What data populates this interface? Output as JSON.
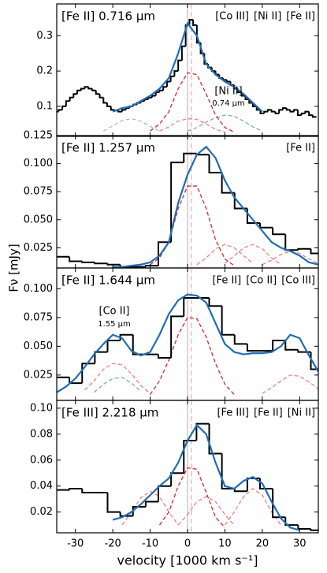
{
  "chart_data": [
    {
      "type": "line",
      "title": "[Fe II] 0.716 μm",
      "legend_labels": [
        {
          "text": "[Co III]",
          "color": "#f08080"
        },
        {
          "text": "[Ni II]",
          "color": "#7aa6d6"
        },
        {
          "text": "[Fe II]",
          "color": "#b8b8b8"
        }
      ],
      "annotations": [
        {
          "text": "[Ni II]",
          "detail": "0.74 μm",
          "color": "#7aa6d6"
        }
      ],
      "xlim": [
        -35,
        35
      ],
      "ylim": [
        0.015,
        0.39
      ],
      "yticks": [
        0.1,
        0.2,
        0.3
      ],
      "vlines": [
        {
          "x": 0,
          "color": "#cccccc"
        },
        {
          "x": 1,
          "color": "#f6b8c6",
          "dash": true
        }
      ],
      "series": [
        {
          "color": "#b8b8b8",
          "dash": true,
          "x": [
            -22.5,
            -20,
            -17.5,
            -15,
            -12.5,
            -10,
            -7.5
          ],
          "values": [
            0.03,
            0.045,
            0.06,
            0.065,
            0.058,
            0.043,
            0.03
          ]
        },
        {
          "color": "#f08080",
          "dash": true,
          "x": [
            -7.5,
            -5,
            -2.5,
            0,
            2.5,
            5,
            7.5,
            10
          ],
          "values": [
            0.03,
            0.042,
            0.058,
            0.065,
            0.063,
            0.05,
            0.035,
            0.027
          ]
        },
        {
          "color": "#7aa6d6",
          "dash": true,
          "x": [
            0,
            2.5,
            5,
            7.5,
            10,
            12.5,
            15,
            17.5,
            20
          ],
          "values": [
            0.03,
            0.04,
            0.055,
            0.068,
            0.075,
            0.072,
            0.058,
            0.042,
            0.03
          ]
        },
        {
          "color": "#d62728",
          "dash": true,
          "x": [
            -10,
            -7.5,
            -5,
            -2.5,
            0,
            2.5,
            5,
            7.5,
            10,
            12.5
          ],
          "values": [
            0.03,
            0.05,
            0.085,
            0.15,
            0.195,
            0.19,
            0.135,
            0.075,
            0.04,
            0.027
          ]
        },
        {
          "color": "#000000",
          "step": true,
          "x": [
            -35,
            -34,
            -33,
            -32,
            -31,
            -30,
            -29,
            -28,
            -27,
            -26,
            -25,
            -24,
            -23,
            -22,
            -21,
            -20,
            -19,
            -18,
            -17,
            -16,
            -15,
            -14,
            -13,
            -12,
            -11,
            -10,
            -9,
            -8,
            -7,
            -6,
            -5,
            -4,
            -3,
            -2,
            -1,
            0,
            1,
            2,
            3,
            4,
            5,
            6,
            7,
            8,
            9,
            10,
            11,
            12,
            13,
            14,
            15,
            16,
            17,
            18,
            19,
            20,
            21,
            22,
            23,
            24,
            25,
            26,
            27,
            28,
            29,
            30,
            31,
            32,
            33,
            34
          ],
          "values": [
            0.085,
            0.09,
            0.1,
            0.115,
            0.125,
            0.135,
            0.145,
            0.15,
            0.155,
            0.15,
            0.145,
            0.135,
            0.125,
            0.11,
            0.1,
            0.09,
            0.088,
            0.085,
            0.09,
            0.095,
            0.1,
            0.105,
            0.11,
            0.115,
            0.12,
            0.125,
            0.13,
            0.14,
            0.145,
            0.155,
            0.17,
            0.185,
            0.2,
            0.23,
            0.27,
            0.33,
            0.345,
            0.33,
            0.28,
            0.25,
            0.22,
            0.21,
            0.2,
            0.19,
            0.18,
            0.175,
            0.17,
            0.16,
            0.15,
            0.14,
            0.13,
            0.12,
            0.11,
            0.1,
            0.09,
            0.08,
            0.085,
            0.09,
            0.085,
            0.08,
            0.09,
            0.095,
            0.09,
            0.085,
            0.09,
            0.075,
            0.08,
            0.085,
            0.075,
            0.07
          ]
        },
        {
          "color": "#1f6db5",
          "x": [
            -20,
            -17.5,
            -15,
            -12.5,
            -10,
            -7.5,
            -5,
            -2.5,
            0,
            2.5,
            5,
            7.5,
            10,
            12.5,
            15,
            17.5,
            20
          ],
          "values": [
            0.085,
            0.095,
            0.1,
            0.115,
            0.13,
            0.15,
            0.18,
            0.25,
            0.335,
            0.3,
            0.22,
            0.19,
            0.17,
            0.155,
            0.135,
            0.11,
            0.085
          ]
        }
      ]
    },
    {
      "type": "line",
      "title": "[Fe II] 1.257 μm",
      "y_label": "Fν [mJy]",
      "legend_labels": [
        {
          "text": "[Fe II]",
          "color": "#f08080"
        }
      ],
      "xlim": [
        -35,
        35
      ],
      "ylim": [
        0.007,
        0.125
      ],
      "yticks": [
        0.025,
        {
          "value": 0.05,
          "label": "0.050"
        },
        0.075,
        {
          "value": 0.1,
          "label": "0.100"
        },
        0.125
      ],
      "vlines": [
        {
          "x": 0,
          "color": "#cccccc"
        },
        {
          "x": 1,
          "color": "#f6b8c6",
          "dash": true
        }
      ],
      "series": [
        {
          "color": "#f08080",
          "dash": true,
          "x": [
            2.5,
            5,
            7.5,
            10,
            12.5,
            15,
            17.5
          ],
          "values": [
            0.01,
            0.016,
            0.024,
            0.028,
            0.025,
            0.018,
            0.011
          ]
        },
        {
          "color": "#f08080",
          "dash": true,
          "x": [
            10,
            12.5,
            15,
            17.5,
            20,
            22.5,
            25
          ],
          "values": [
            0.011,
            0.018,
            0.025,
            0.028,
            0.024,
            0.016,
            0.01
          ]
        },
        {
          "color": "#f08080",
          "dash": true,
          "x": [
            20,
            22.5,
            25,
            27.5,
            30,
            32.5,
            35
          ],
          "values": [
            0.01,
            0.014,
            0.019,
            0.022,
            0.02,
            0.015,
            0.011
          ]
        },
        {
          "color": "#d62728",
          "dash": true,
          "x": [
            -10,
            -7.5,
            -5,
            -2.5,
            0,
            2.5,
            5,
            7.5,
            10,
            12.5
          ],
          "values": [
            0.01,
            0.016,
            0.03,
            0.06,
            0.08,
            0.08,
            0.06,
            0.032,
            0.015,
            0.009
          ]
        },
        {
          "color": "#000000",
          "step": true,
          "x": [
            -33.3,
            -29.9,
            -26.5,
            -23.1,
            -19.7,
            -16.3,
            -12.9,
            -9.5,
            -6.1,
            -2.7,
            0.7,
            4.1,
            7.5,
            10.9,
            14.3,
            17.7,
            21.1,
            24.5,
            27.9,
            31.3,
            34.7
          ],
          "values": [
            0.017,
            0.013,
            0.012,
            0.011,
            0.01,
            0.008,
            0.008,
            0.009,
            0.03,
            0.101,
            0.109,
            0.108,
            0.092,
            0.074,
            0.06,
            0.047,
            0.043,
            0.037,
            0.023,
            0.024,
            0.02
          ]
        },
        {
          "color": "#1f6db5",
          "x": [
            -20,
            -17.5,
            -15,
            -12.5,
            -10,
            -7.5,
            -5,
            -2.5,
            0,
            2.5,
            5,
            7.5,
            10,
            12.5,
            15,
            17.5,
            20,
            22.5,
            25,
            27.5,
            30,
            32.5,
            35
          ],
          "values": [
            0.008,
            0.008,
            0.009,
            0.01,
            0.012,
            0.018,
            0.03,
            0.065,
            0.09,
            0.108,
            0.115,
            0.105,
            0.085,
            0.07,
            0.06,
            0.05,
            0.04,
            0.03,
            0.025,
            0.022,
            0.018,
            0.012,
            0.01
          ]
        }
      ]
    },
    {
      "type": "line",
      "title": "[Fe II] 1.644 μm",
      "legend_labels": [
        {
          "text": "[Fe II]",
          "color": "#f08080"
        },
        {
          "text": "[Co II]",
          "color": "#7aa6d6"
        },
        {
          "text": "[Co III]",
          "color": "#b8b8b8"
        }
      ],
      "annotations": [
        {
          "text": "[Co II]",
          "detail": "1.55 μm",
          "color": "#7aa6d6"
        }
      ],
      "xlim": [
        -35,
        35
      ],
      "ylim": [
        0.003,
        0.118
      ],
      "yticks": [
        0.025,
        {
          "value": 0.05,
          "label": "0.050"
        },
        0.075,
        {
          "value": 0.1,
          "label": "0.100"
        }
      ],
      "vlines": [
        {
          "x": 0,
          "color": "#cccccc"
        },
        {
          "x": 1,
          "color": "#f6b8c6",
          "dash": true
        }
      ],
      "series": [
        {
          "color": "#7aa6d6",
          "dash": true,
          "x": [
            -25,
            -22.5,
            -20,
            -17.5,
            -15,
            -12.5
          ],
          "values": [
            0.01,
            0.017,
            0.022,
            0.023,
            0.018,
            0.011
          ]
        },
        {
          "color": "#f08080",
          "dash": true,
          "x": [
            -27.5,
            -25,
            -22.5,
            -20,
            -17.5,
            -15,
            -12.5,
            -10
          ],
          "values": [
            0.012,
            0.02,
            0.03,
            0.035,
            0.034,
            0.026,
            0.016,
            0.009
          ]
        },
        {
          "color": "#f08080",
          "dash": true,
          "x": [
            20,
            22.5,
            25,
            27.5,
            30,
            32.5,
            35
          ],
          "values": [
            0.009,
            0.014,
            0.02,
            0.025,
            0.024,
            0.019,
            0.013
          ]
        },
        {
          "color": "#d62728",
          "dash": true,
          "x": [
            -10,
            -7.5,
            -5,
            -2.5,
            0,
            2.5,
            5,
            7.5,
            10,
            12.5
          ],
          "values": [
            0.008,
            0.02,
            0.038,
            0.06,
            0.075,
            0.074,
            0.058,
            0.035,
            0.017,
            0.008
          ]
        },
        {
          "color": "#000000",
          "step": true,
          "x": [
            -33.3,
            -29.9,
            -26.5,
            -23.1,
            -19.7,
            -16.3,
            -12.9,
            -9.5,
            -6.1,
            -2.7,
            0.7,
            4.1,
            7.5,
            10.9,
            14.3,
            17.7,
            21.1,
            24.5,
            27.9,
            31.3,
            34.7
          ],
          "values": [
            0.023,
            0.018,
            0.035,
            0.045,
            0.055,
            0.06,
            0.043,
            0.043,
            0.04,
            0.076,
            0.092,
            0.092,
            0.085,
            0.06,
            0.052,
            0.046,
            0.046,
            0.055,
            0.047,
            0.045,
            0.03
          ]
        },
        {
          "color": "#1f6db5",
          "x": [
            -35,
            -32.5,
            -30,
            -27.5,
            -25,
            -22.5,
            -20,
            -17.5,
            -15,
            -12.5,
            -10,
            -7.5,
            -5,
            -2.5,
            0,
            2.5,
            5,
            7.5,
            10,
            12.5,
            15,
            17.5,
            20,
            22.5,
            25,
            27.5,
            30,
            32.5,
            35
          ],
          "values": [
            0.01,
            0.015,
            0.022,
            0.032,
            0.043,
            0.052,
            0.06,
            0.057,
            0.046,
            0.042,
            0.045,
            0.06,
            0.078,
            0.09,
            0.095,
            0.094,
            0.088,
            0.07,
            0.052,
            0.045,
            0.043,
            0.044,
            0.044,
            0.045,
            0.05,
            0.06,
            0.057,
            0.042,
            0.028
          ]
        }
      ]
    },
    {
      "type": "line",
      "title": "[Fe III] 2.218 μm",
      "x_label": "velocity [1000 km s⁻¹]",
      "legend_labels": [
        {
          "text": "[Fe III]",
          "color": "#f08080"
        },
        {
          "text": "[Fe II]",
          "color": "#7aa6d6"
        },
        {
          "text": "[Ni II]",
          "color": "#b8b8b8"
        }
      ],
      "xlim": [
        -35,
        35
      ],
      "ylim": [
        0.004,
        0.106
      ],
      "xticks": [
        -30,
        -20,
        -10,
        0,
        10,
        20,
        30
      ],
      "yticks": [
        0.02,
        0.04,
        0.06,
        0.08,
        {
          "value": 0.1,
          "label": "0.10"
        }
      ],
      "vlines": [
        {
          "x": 0,
          "color": "#cccccc"
        },
        {
          "x": 1,
          "color": "#f6b8c6",
          "dash": true
        }
      ],
      "series": [
        {
          "color": "#f08080",
          "dash": true,
          "x": [
            -17.5,
            -15,
            -12.5,
            -10,
            -7.5,
            -5,
            -2.5
          ],
          "values": [
            0.01,
            0.02,
            0.031,
            0.036,
            0.032,
            0.02,
            0.01
          ]
        },
        {
          "color": "#f08080",
          "dash": true,
          "x": [
            -2.5,
            0,
            2.5,
            5,
            7.5,
            10,
            12.5
          ],
          "values": [
            0.01,
            0.018,
            0.028,
            0.032,
            0.028,
            0.018,
            0.01
          ]
        },
        {
          "color": "#f08080",
          "dash": true,
          "x": [
            10,
            12.5,
            15,
            17.5,
            20,
            22.5,
            25
          ],
          "values": [
            0.01,
            0.02,
            0.032,
            0.038,
            0.033,
            0.02,
            0.01
          ]
        },
        {
          "color": "#d62728",
          "dash": true,
          "x": [
            -7.5,
            -5,
            -2.5,
            0,
            2.5,
            5,
            7.5,
            10
          ],
          "values": [
            0.01,
            0.02,
            0.04,
            0.054,
            0.053,
            0.035,
            0.016,
            0.008
          ]
        },
        {
          "color": "#000000",
          "step": true,
          "x": [
            -33.3,
            -29.9,
            -26.5,
            -23.1,
            -19.7,
            -16.3,
            -12.9,
            -9.5,
            -6.1,
            -2.7,
            0.7,
            4.1,
            7.5,
            10.9,
            14.3,
            17.7,
            21.1,
            24.5,
            27.9,
            31.3,
            34.7
          ],
          "values": [
            0.037,
            0.038,
            0.035,
            0.035,
            0.02,
            0.017,
            0.024,
            0.028,
            0.04,
            0.05,
            0.075,
            0.088,
            0.065,
            0.038,
            0.036,
            0.046,
            0.038,
            0.016,
            0.01,
            0.007,
            0.006
          ]
        },
        {
          "color": "#1f6db5",
          "x": [
            -20,
            -17.5,
            -15,
            -12.5,
            -10,
            -7.5,
            -5,
            -2.5,
            0,
            2.5,
            5,
            7.5,
            10,
            12.5,
            15,
            17.5,
            20,
            22.5,
            25,
            27.5,
            30
          ],
          "values": [
            0.014,
            0.016,
            0.02,
            0.026,
            0.033,
            0.04,
            0.046,
            0.058,
            0.075,
            0.087,
            0.08,
            0.058,
            0.04,
            0.038,
            0.044,
            0.047,
            0.042,
            0.028,
            0.015,
            0.008,
            0.006
          ]
        }
      ]
    }
  ]
}
